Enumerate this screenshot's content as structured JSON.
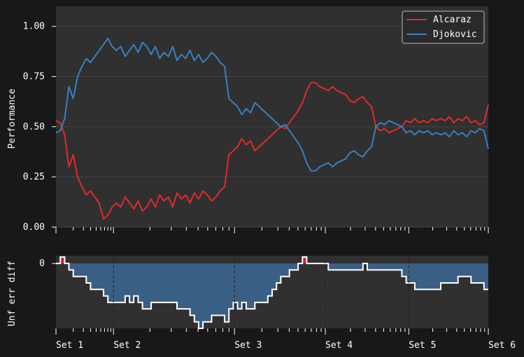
{
  "colors": {
    "figure_bg": "#181818",
    "axes_bg": "#303030",
    "grid": "#444444",
    "alcaraz": "#e02b2b",
    "djokovic": "#3a7fc4",
    "diff_fill": "#3a5f85",
    "diff_pos_fill": "#c0283a",
    "diff_line": "#ffffff",
    "text": "#ffffff"
  },
  "chart_data": [
    {
      "type": "line",
      "title": "",
      "xlabel": "",
      "ylabel": "Performance",
      "ylim": [
        0,
        1.1
      ],
      "xlim": [
        0,
        1
      ],
      "yticks": [
        {
          "value": 0.0,
          "label": "0.00"
        },
        {
          "value": 0.25,
          "label": "0.25"
        },
        {
          "value": 0.5,
          "label": "0.50"
        },
        {
          "value": 0.75,
          "label": "0.75"
        },
        {
          "value": 1.0,
          "label": "1.00"
        }
      ],
      "grid": "horizontal",
      "legend_position": "top-right",
      "x": [
        0,
        0.01,
        0.02,
        0.03,
        0.04,
        0.05,
        0.06,
        0.07,
        0.08,
        0.09,
        0.1,
        0.11,
        0.12,
        0.13,
        0.14,
        0.15,
        0.16,
        0.17,
        0.18,
        0.19,
        0.2,
        0.21,
        0.22,
        0.23,
        0.24,
        0.25,
        0.26,
        0.27,
        0.28,
        0.29,
        0.3,
        0.31,
        0.32,
        0.33,
        0.34,
        0.35,
        0.36,
        0.37,
        0.38,
        0.39,
        0.4,
        0.41,
        0.42,
        0.43,
        0.44,
        0.45,
        0.46,
        0.47,
        0.48,
        0.49,
        0.5,
        0.51,
        0.52,
        0.53,
        0.54,
        0.55,
        0.56,
        0.57,
        0.58,
        0.59,
        0.6,
        0.61,
        0.62,
        0.63,
        0.64,
        0.65,
        0.66,
        0.67,
        0.68,
        0.69,
        0.7,
        0.71,
        0.72,
        0.73,
        0.74,
        0.75,
        0.76,
        0.77,
        0.78,
        0.79,
        0.8,
        0.81,
        0.82,
        0.83,
        0.84,
        0.85,
        0.86,
        0.87,
        0.88,
        0.89,
        0.9,
        0.91,
        0.92,
        0.93,
        0.94,
        0.95,
        0.96,
        0.97,
        0.98,
        0.99,
        1.0
      ],
      "series": [
        {
          "name": "Alcaraz",
          "color": "#e02b2b",
          "values": [
            0.53,
            0.52,
            0.46,
            0.3,
            0.36,
            0.25,
            0.2,
            0.16,
            0.18,
            0.15,
            0.12,
            0.04,
            0.06,
            0.1,
            0.12,
            0.1,
            0.15,
            0.12,
            0.09,
            0.13,
            0.08,
            0.1,
            0.14,
            0.1,
            0.16,
            0.13,
            0.15,
            0.1,
            0.17,
            0.14,
            0.16,
            0.12,
            0.17,
            0.14,
            0.18,
            0.16,
            0.13,
            0.15,
            0.18,
            0.2,
            0.36,
            0.38,
            0.4,
            0.44,
            0.41,
            0.43,
            0.38,
            0.4,
            0.42,
            0.44,
            0.46,
            0.48,
            0.5,
            0.49,
            0.52,
            0.55,
            0.58,
            0.62,
            0.68,
            0.72,
            0.72,
            0.7,
            0.69,
            0.68,
            0.7,
            0.68,
            0.67,
            0.66,
            0.63,
            0.62,
            0.64,
            0.65,
            0.62,
            0.6,
            0.5,
            0.48,
            0.49,
            0.47,
            0.48,
            0.49,
            0.5,
            0.53,
            0.52,
            0.54,
            0.52,
            0.53,
            0.52,
            0.54,
            0.53,
            0.54,
            0.53,
            0.55,
            0.52,
            0.54,
            0.53,
            0.55,
            0.52,
            0.53,
            0.51,
            0.52,
            0.61
          ]
        },
        {
          "name": "Djokovic",
          "color": "#3a7fc4",
          "values": [
            0.47,
            0.48,
            0.54,
            0.7,
            0.64,
            0.75,
            0.8,
            0.84,
            0.82,
            0.85,
            0.88,
            0.91,
            0.94,
            0.9,
            0.88,
            0.9,
            0.85,
            0.88,
            0.91,
            0.87,
            0.92,
            0.9,
            0.86,
            0.9,
            0.84,
            0.87,
            0.85,
            0.9,
            0.83,
            0.86,
            0.84,
            0.88,
            0.83,
            0.86,
            0.82,
            0.84,
            0.87,
            0.85,
            0.82,
            0.8,
            0.64,
            0.62,
            0.6,
            0.56,
            0.59,
            0.57,
            0.62,
            0.6,
            0.58,
            0.56,
            0.54,
            0.52,
            0.5,
            0.51,
            0.48,
            0.45,
            0.42,
            0.38,
            0.32,
            0.28,
            0.28,
            0.3,
            0.31,
            0.32,
            0.3,
            0.32,
            0.33,
            0.34,
            0.37,
            0.38,
            0.36,
            0.35,
            0.38,
            0.4,
            0.5,
            0.52,
            0.51,
            0.53,
            0.52,
            0.51,
            0.5,
            0.47,
            0.48,
            0.46,
            0.48,
            0.47,
            0.48,
            0.46,
            0.47,
            0.46,
            0.47,
            0.45,
            0.48,
            0.46,
            0.47,
            0.45,
            0.48,
            0.47,
            0.49,
            0.48,
            0.39
          ]
        }
      ]
    },
    {
      "type": "area",
      "title": "",
      "xlabel": "",
      "ylabel": "Unf err diff",
      "ylim": [
        -10,
        1.2
      ],
      "xlim": [
        0,
        1
      ],
      "yticks": [
        {
          "value": 0,
          "label": "0"
        }
      ],
      "grid": "none",
      "x": [
        0,
        0.01,
        0.02,
        0.03,
        0.04,
        0.05,
        0.06,
        0.07,
        0.08,
        0.09,
        0.1,
        0.11,
        0.12,
        0.13,
        0.14,
        0.15,
        0.16,
        0.17,
        0.18,
        0.19,
        0.2,
        0.21,
        0.22,
        0.23,
        0.24,
        0.25,
        0.26,
        0.27,
        0.28,
        0.29,
        0.3,
        0.31,
        0.32,
        0.33,
        0.34,
        0.35,
        0.36,
        0.37,
        0.38,
        0.39,
        0.4,
        0.41,
        0.42,
        0.43,
        0.44,
        0.45,
        0.46,
        0.47,
        0.48,
        0.49,
        0.5,
        0.51,
        0.52,
        0.53,
        0.54,
        0.55,
        0.56,
        0.57,
        0.58,
        0.59,
        0.6,
        0.61,
        0.62,
        0.63,
        0.64,
        0.65,
        0.66,
        0.67,
        0.68,
        0.69,
        0.7,
        0.71,
        0.72,
        0.73,
        0.74,
        0.75,
        0.76,
        0.77,
        0.78,
        0.79,
        0.8,
        0.81,
        0.82,
        0.83,
        0.84,
        0.85,
        0.86,
        0.87,
        0.88,
        0.89,
        0.9,
        0.91,
        0.92,
        0.93,
        0.94,
        0.95,
        0.96,
        0.97,
        0.98,
        0.99,
        1.0
      ],
      "values": [
        0,
        1,
        0,
        -1,
        -2,
        -2,
        -2,
        -3,
        -4,
        -4,
        -4,
        -5,
        -6,
        -6,
        -6,
        -6,
        -5,
        -6,
        -5,
        -6,
        -7,
        -7,
        -6,
        -6,
        -6,
        -6,
        -6,
        -6,
        -7,
        -7,
        -7,
        -8,
        -9,
        -10,
        -9,
        -9,
        -8,
        -8,
        -8,
        -9,
        -7,
        -6,
        -7,
        -6,
        -7,
        -7,
        -6,
        -6,
        -6,
        -5,
        -4,
        -3,
        -2,
        -2,
        -1,
        -1,
        0,
        1,
        0,
        0,
        0,
        0,
        0,
        -1,
        -1,
        -1,
        -1,
        -1,
        -1,
        -1,
        -1,
        0,
        -1,
        -1,
        -1,
        -1,
        -1,
        -1,
        -1,
        -1,
        -2,
        -3,
        -3,
        -4,
        -4,
        -4,
        -4,
        -4,
        -4,
        -3,
        -3,
        -3,
        -3,
        -2,
        -2,
        -2,
        -3,
        -3,
        -3,
        -4,
        -4
      ],
      "x_ticks": [
        {
          "value": 0.0,
          "label": "Set 1"
        },
        {
          "value": 0.133,
          "label": "Set 2"
        },
        {
          "value": 0.413,
          "label": "Set 3"
        },
        {
          "value": 0.623,
          "label": "Set 4"
        },
        {
          "value": 0.816,
          "label": "Set 5"
        },
        {
          "value": 1.0,
          "label": "Set 6"
        }
      ]
    }
  ]
}
